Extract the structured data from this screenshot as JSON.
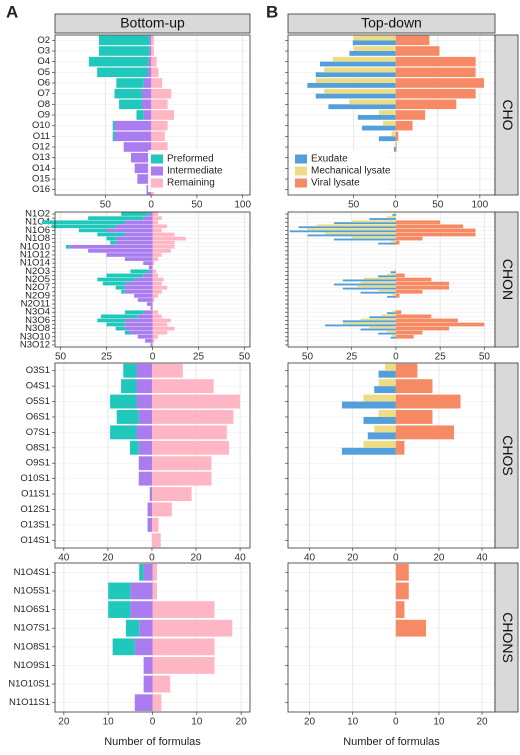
{
  "chart_data": [
    {
      "type": "bar",
      "mode": "stack",
      "panel": "A",
      "title": "Bottom-up",
      "legend": "bottom-right",
      "categories": [
        "O2",
        "O3",
        "O4",
        "O5",
        "O6",
        "O7",
        "O8",
        "O9",
        "O10",
        "O11",
        "O12",
        "O13",
        "O14",
        "O15",
        "O16"
      ],
      "series": [
        {
          "name": "Preformed",
          "color": "#1fc8bb",
          "values": [
            -55,
            -55,
            -65,
            -55,
            -30,
            -30,
            -25,
            -8,
            -2,
            -2,
            0,
            0,
            0,
            0,
            0
          ]
        },
        {
          "name": "Intermediate",
          "color": "#a97cf0",
          "values": [
            -2,
            -2,
            -3,
            -4,
            -8,
            -10,
            -10,
            -8,
            -40,
            -40,
            -30,
            -22,
            -18,
            -15,
            -5
          ]
        },
        {
          "name": "Remaining",
          "color": "#ffb6c4",
          "values": [
            3,
            3,
            6,
            8,
            12,
            22,
            18,
            25,
            18,
            15,
            18,
            13,
            12,
            8,
            3
          ]
        }
      ],
      "xlim": [
        -105,
        108
      ],
      "xticks": [
        {
          "value": -50,
          "label": "50"
        },
        0,
        50,
        100
      ]
    },
    {
      "type": "bar",
      "mode": "dodge",
      "panel": "B",
      "title": "Top-down",
      "facet": "CHO",
      "legend": "bottom-left",
      "categories": [
        null,
        null,
        null,
        null,
        null,
        null,
        null,
        null,
        null,
        null,
        null,
        null,
        null,
        null,
        null
      ],
      "series": [
        {
          "name": "Exudate",
          "color": "#529fdc",
          "values": [
            -51,
            -55,
            -90,
            -95,
            -105,
            -95,
            -80,
            -45,
            -40,
            -20,
            -2,
            0,
            0,
            0,
            0
          ]
        },
        {
          "name": "Mechanical lysate",
          "color": "#ecdc86",
          "values": [
            -50,
            -50,
            -75,
            -85,
            -95,
            -85,
            -55,
            -20,
            -15,
            -5,
            -1,
            0,
            0,
            0,
            0
          ]
        },
        {
          "name": "Viral lysate",
          "color": "#f58a64",
          "values": [
            40,
            52,
            95,
            95,
            105,
            95,
            72,
            35,
            20,
            3,
            1,
            0,
            0,
            0,
            0
          ]
        }
      ],
      "xlim": [
        -128,
        118
      ],
      "xticks": [
        {
          "value": -50,
          "label": "50"
        },
        0,
        50,
        100
      ]
    },
    {
      "type": "bar",
      "mode": "stack",
      "categories": [
        "N1O2",
        null,
        "N1O4",
        null,
        "N1O6",
        null,
        "N1O8",
        null,
        "N1O10",
        null,
        "N1O12",
        null,
        "N1O14",
        null,
        "N2O3",
        null,
        "N2O5",
        null,
        "N2O7",
        null,
        "N2O9",
        null,
        "N2O11",
        null,
        "N3O4",
        null,
        "N3O6",
        null,
        "N3O8",
        null,
        "N3O10",
        null,
        "N3O12"
      ],
      "series": [
        {
          "color": "#1fc8bb",
          "values": [
            -15,
            -30,
            -45,
            -35,
            -15,
            -15,
            -5,
            -3,
            -2,
            0,
            0,
            0,
            0,
            0,
            -10,
            -20,
            -20,
            -12,
            -5,
            -2,
            0,
            0,
            0,
            0,
            -10,
            -20,
            -15,
            -10,
            -5,
            -3,
            0,
            0,
            0
          ]
        },
        {
          "color": "#a97cf0",
          "values": [
            -2,
            -5,
            -15,
            -20,
            -25,
            -15,
            -20,
            -20,
            -45,
            -35,
            -25,
            -15,
            -5,
            -2,
            -2,
            -5,
            -10,
            -15,
            -15,
            -15,
            -10,
            -8,
            -3,
            -1,
            -5,
            -8,
            -15,
            -15,
            -15,
            -12,
            -8,
            -4,
            -1
          ]
        },
        {
          "color": "#ffb6c4",
          "values": [
            3,
            5,
            3,
            8,
            5,
            12,
            18,
            12,
            12,
            10,
            5,
            3,
            1,
            0,
            2,
            3,
            6,
            5,
            8,
            5,
            3,
            1,
            0,
            0,
            3,
            5,
            10,
            8,
            12,
            8,
            3,
            1,
            0
          ]
        }
      ],
      "xlim": [
        -53,
        53
      ],
      "xticks": [
        {
          "value": -50,
          "label": "50"
        },
        {
          "value": -25,
          "label": "25"
        },
        0,
        25,
        50
      ]
    },
    {
      "type": "bar",
      "mode": "dodge",
      "facet": "CHON",
      "categories": [
        null,
        null,
        null,
        null,
        null,
        null,
        null,
        null,
        null,
        null,
        null,
        null,
        null,
        null,
        null,
        null,
        null,
        null,
        null,
        null,
        null,
        null,
        null,
        null,
        null,
        null,
        null,
        null,
        null,
        null,
        null,
        null,
        null
      ],
      "series": [
        {
          "color": "#529fdc",
          "values": [
            -2,
            -15,
            -35,
            -55,
            -60,
            -50,
            -35,
            -10,
            0,
            0,
            0,
            0,
            0,
            0,
            -3,
            -10,
            -30,
            -35,
            -30,
            -20,
            -5,
            0,
            0,
            0,
            -5,
            -15,
            -30,
            -40,
            -20,
            -10,
            -3,
            0,
            0
          ]
        },
        {
          "color": "#ecdc86",
          "values": [
            -1,
            -5,
            -25,
            -45,
            -50,
            -40,
            -25,
            -3,
            0,
            0,
            0,
            0,
            0,
            0,
            -1,
            -5,
            -18,
            -20,
            -22,
            -10,
            -2,
            0,
            0,
            0,
            -2,
            -8,
            -20,
            -30,
            -15,
            -5,
            -2,
            0,
            0
          ]
        },
        {
          "color": "#f58a64",
          "values": [
            0,
            0,
            25,
            38,
            45,
            45,
            15,
            2,
            0,
            0,
            0,
            0,
            0,
            0,
            0,
            5,
            20,
            30,
            30,
            15,
            2,
            0,
            0,
            0,
            3,
            20,
            35,
            50,
            30,
            15,
            10,
            0,
            0
          ]
        }
      ],
      "xlim": [
        -61,
        56
      ],
      "xticks": [
        {
          "value": -50,
          "label": "50"
        },
        {
          "value": -25,
          "label": "25"
        },
        0,
        25,
        50
      ]
    },
    {
      "type": "bar",
      "mode": "stack",
      "categories": [
        "O3S1",
        "O4S1",
        "O5S1",
        "O6S1",
        "O7S1",
        "O8S1",
        "O9S1",
        "O10S1",
        "O11S1",
        "O12S1",
        "O13S1",
        "O14S1"
      ],
      "series": [
        {
          "color": "#1fc8bb",
          "values": [
            -6,
            -7,
            -12,
            -10,
            -12,
            -4,
            0,
            0,
            0,
            0,
            0,
            0
          ]
        },
        {
          "color": "#a97cf0",
          "values": [
            -7,
            -7,
            -7,
            -6,
            -7,
            -6,
            -6,
            -6,
            -1,
            -2,
            -2,
            0
          ]
        },
        {
          "color": "#ffb6c4",
          "values": [
            14,
            28,
            40,
            37,
            34,
            35,
            27,
            27,
            18,
            9,
            3,
            4
          ]
        }
      ],
      "xlim": [
        -44,
        44.5
      ],
      "xticks": [
        {
          "value": -40,
          "label": "40"
        },
        {
          "value": -20,
          "label": "20"
        },
        0,
        20,
        40
      ]
    },
    {
      "type": "bar",
      "mode": "dodge",
      "facet": "CHOS",
      "categories": [
        null,
        null,
        null,
        null,
        null,
        null,
        null,
        null,
        null,
        null,
        null,
        null
      ],
      "series": [
        {
          "color": "#529fdc",
          "values": [
            -8,
            -10,
            -25,
            -15,
            -13,
            -25,
            0,
            0,
            0,
            0,
            0,
            0
          ]
        },
        {
          "color": "#ecdc86",
          "values": [
            -5,
            -8,
            -15,
            -8,
            -10,
            -15,
            0,
            0,
            0,
            0,
            0,
            0
          ]
        },
        {
          "color": "#f58a64",
          "values": [
            10,
            17,
            30,
            17,
            27,
            4,
            0,
            0,
            0,
            0,
            0,
            0
          ]
        }
      ],
      "xlim": [
        -50,
        46
      ],
      "xticks": [
        {
          "value": -40,
          "label": "40"
        },
        {
          "value": -20,
          "label": "20"
        },
        0,
        20,
        40
      ]
    },
    {
      "type": "bar",
      "mode": "stack",
      "xlabel": "Number of formulas",
      "categories": [
        "N1O4S1",
        "N1O5S1",
        "N1O6S1",
        "N1O7S1",
        "N1O8S1",
        "N1O9S1",
        "N1O10S1",
        "N1O11S1"
      ],
      "series": [
        {
          "color": "#1fc8bb",
          "values": [
            -1,
            -5,
            -5,
            -3,
            -5,
            0,
            0,
            0
          ]
        },
        {
          "color": "#a97cf0",
          "values": [
            -2,
            -5,
            -5,
            -3,
            -4,
            -2,
            -2,
            -4
          ]
        },
        {
          "color": "#ffb6c4",
          "values": [
            1,
            1,
            14,
            18,
            14,
            14,
            4,
            2
          ]
        }
      ],
      "xlim": [
        -22,
        22
      ],
      "xticks": [
        {
          "value": -20,
          "label": "20"
        },
        {
          "value": -10,
          "label": "10"
        },
        0,
        10,
        20
      ]
    },
    {
      "type": "bar",
      "mode": "dodge",
      "facet": "CHONS",
      "xlabel": "Number of formulas",
      "categories": [
        null,
        null,
        null,
        null,
        null,
        null,
        null,
        null
      ],
      "series": [
        {
          "color": "#529fdc",
          "values": [
            0,
            0,
            0,
            0,
            0,
            0,
            0,
            0
          ]
        },
        {
          "color": "#ecdc86",
          "values": [
            0,
            0,
            0,
            0,
            0,
            0,
            0,
            0
          ]
        },
        {
          "color": "#f58a64",
          "values": [
            3,
            3,
            2,
            7,
            0,
            0,
            0,
            0
          ]
        }
      ],
      "xlim": [
        -25,
        23
      ],
      "xticks": [
        {
          "value": -20,
          "label": "20"
        },
        {
          "value": -10,
          "label": "10"
        },
        0,
        10,
        20
      ]
    }
  ]
}
